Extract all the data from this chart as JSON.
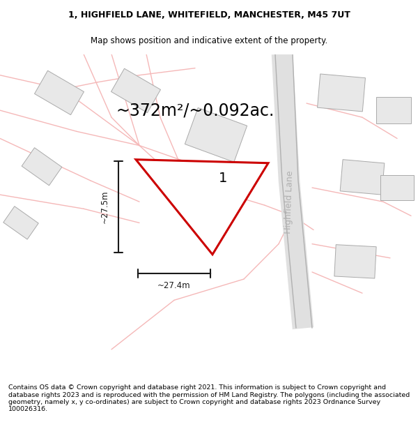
{
  "title_line1": "1, HIGHFIELD LANE, WHITEFIELD, MANCHESTER, M45 7UT",
  "title_line2": "Map shows position and indicative extent of the property.",
  "area_text": "~372m²/~0.092ac.",
  "plot_number": "1",
  "street_label": "Highfield Lane",
  "dim_height": "~27.5m",
  "dim_width": "~27.4m",
  "footer_text": "Contains OS data © Crown copyright and database right 2021. This information is subject to Crown copyright and database rights 2023 and is reproduced with the permission of HM Land Registry. The polygons (including the associated geometry, namely x, y co-ordinates) are subject to Crown copyright and database rights 2023 Ordnance Survey 100026316.",
  "bg_color": "#ffffff",
  "road_color": "#f5b8b8",
  "road_lw": 1.0,
  "building_color": "#e8e8e8",
  "building_edge": "#aaaaaa",
  "plot_red": "#cc0000",
  "dim_color": "#1a1a1a",
  "title_fontsize": 9.0,
  "footer_fontsize": 6.8,
  "area_fontsize": 17,
  "street_fontsize": 9,
  "plot_label_fontsize": 14
}
